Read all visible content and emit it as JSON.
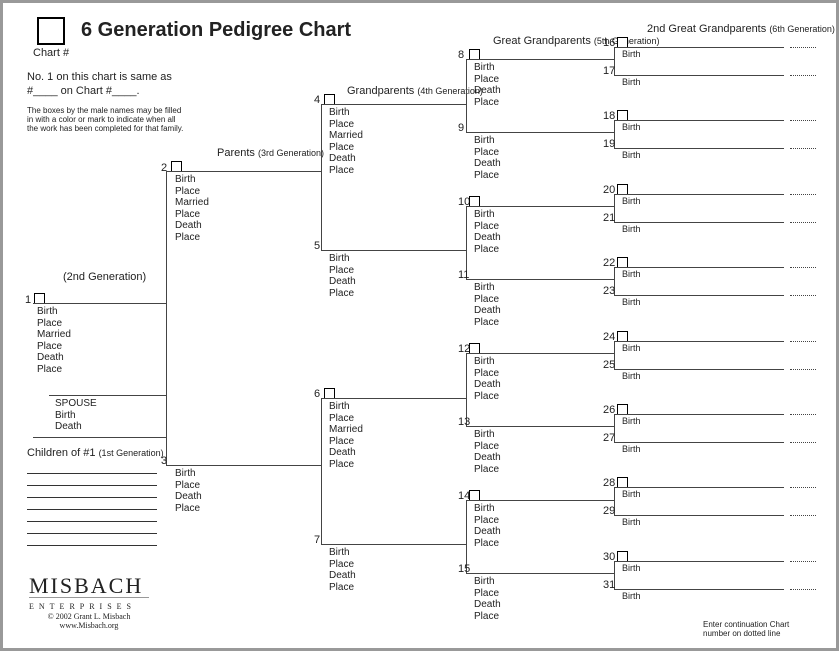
{
  "title": "6 Generation Pedigree Chart",
  "chart_label": "Chart #",
  "note_same": "No. 1 on this chart is same as #____ on Chart #____.",
  "fineprint": "The boxes by the male names may be filled in with a color or mark to indicate when all the work has been completed for that family.",
  "headers": {
    "parents": "Parents",
    "parents_gen": "(3rd Generation)",
    "grandparents": "Grandparents",
    "grandparents_gen": "(4th Generation)",
    "great": "Great Grandparents",
    "great_gen": "(5th Generation)",
    "great2": "2nd Great Grandparents",
    "great2_gen": "(6th Generation)",
    "gen2": "(2nd Generation)",
    "children": "Children of #1",
    "children_gen": "(1st Generation)"
  },
  "labels": {
    "bpmd": [
      "Birth",
      "Place",
      "Married",
      "Place",
      "Death",
      "Place"
    ],
    "bpd": [
      "Birth",
      "Place",
      "Death",
      "Place"
    ],
    "birth": "Birth",
    "spouse": "SPOUSE",
    "spouse_sub": [
      "Birth",
      "Death"
    ]
  },
  "footer": {
    "logo1": "MISBACH",
    "logo2": "ENTERPRISES",
    "copyright": "© 2002 Grant L. Misbach",
    "url": "www.Misbach.org",
    "cont": "Enter continuation Chart number on dotted line"
  },
  "gen6_start": 16,
  "gen6_end": 31
}
